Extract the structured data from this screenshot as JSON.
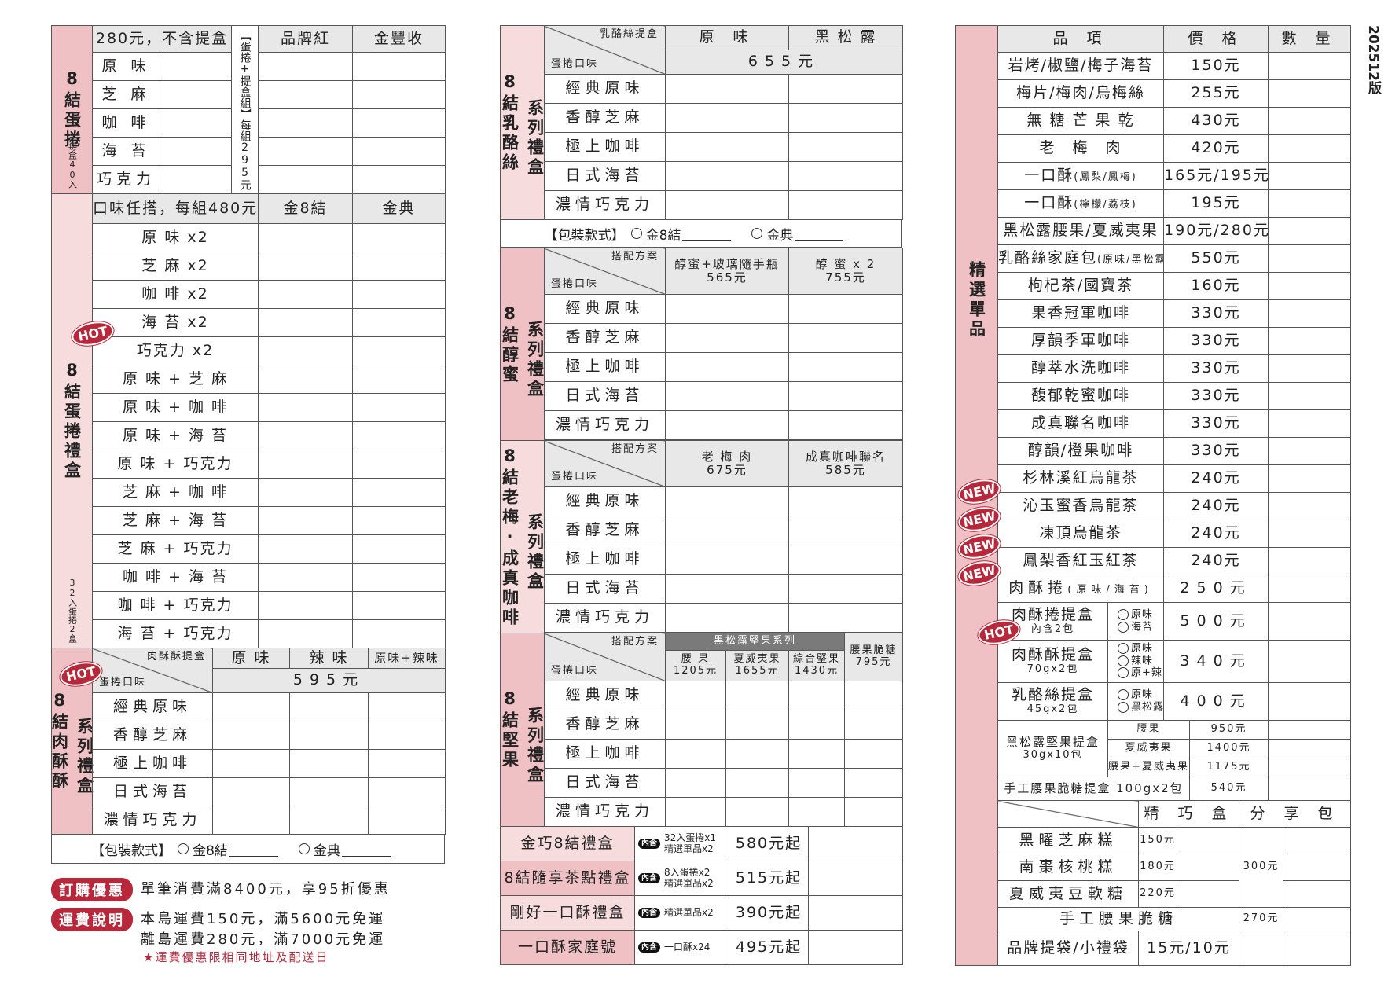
{
  "version": "202512版",
  "badges": {
    "hot": "HOT",
    "new": "NEW"
  },
  "colors": {
    "accent_red": "#b8283a",
    "label_pink": "#efc0c4",
    "label_light_pink": "#f7dcde",
    "header_gray": "#e8e8e8"
  },
  "eggroll": {
    "title": "8結蛋捲",
    "note": "每盒40入",
    "price_note": "280元，不含提盒",
    "set_label": "【蛋捲+提盒組】",
    "set_price": "每組295元",
    "box_cols": [
      "品牌紅",
      "金豐收"
    ],
    "flavors": [
      "原 味",
      "芝 麻",
      "咖 啡",
      "海 苔",
      "巧克力"
    ]
  },
  "eggroll_gift": {
    "title": "8結蛋捲禮盒",
    "note": "32入蛋捲2盒",
    "header": "口味任搭，每組480元",
    "cols": [
      "金8結",
      "金典"
    ],
    "combos": [
      "原 味 x2",
      "芝 麻 x2",
      "咖 啡 x2",
      "海 苔 x2",
      "巧克力 x2",
      "原 味 + 芝 麻",
      "原 味 + 咖 啡",
      "原 味 + 海 苔",
      "原 味 + 巧克力",
      "芝 麻 + 咖 啡",
      "芝 麻 + 海 苔",
      "芝 麻 + 巧克力",
      "咖 啡 + 海 苔",
      "咖 啡 + 巧克力",
      "海 苔 + 巧克力"
    ]
  },
  "flavors": [
    "經典原味",
    "香醇芝麻",
    "極上咖啡",
    "日式海苔",
    "濃情巧克力"
  ],
  "corner_bottom": "蛋捲口味",
  "corner_plan": "搭配方案",
  "package": {
    "label": "【包裝款式】",
    "opt1": "金8結",
    "opt2": "金典"
  },
  "pork_floss": {
    "title": "8結肉酥酥",
    "sub": "系列禮盒",
    "corner_top": "肉酥酥提盒",
    "cols": [
      "原 味",
      "辣 味",
      "原味+辣味"
    ],
    "price": "595元"
  },
  "cheese": {
    "title": "8結乳酪絲",
    "sub": "系列禮盒",
    "corner_top": "乳酪絲提盒",
    "cols": [
      "原 味",
      "黑 松 露"
    ],
    "price": "655元"
  },
  "honey": {
    "title": "8結醇蜜",
    "sub": "系列禮盒",
    "cols": [
      {
        "name": "醇蜜+玻璃隨手瓶",
        "price": "565元"
      },
      {
        "name": "醇 蜜 x 2",
        "price": "755元"
      }
    ]
  },
  "plum": {
    "title": "8結老梅‧成真咖啡",
    "sub": "系列禮盒",
    "cols": [
      {
        "name": "老 梅 肉",
        "price": "675元"
      },
      {
        "name": "成真咖啡聯名",
        "price": "585元"
      }
    ]
  },
  "nut": {
    "title": "8結堅果",
    "sub": "系列禮盒",
    "series": "黑松露堅果系列",
    "cols": [
      {
        "name": "腰 果",
        "price": "1205元"
      },
      {
        "name": "夏威夷果",
        "price": "1655元"
      },
      {
        "name": "綜合堅果",
        "price": "1430元"
      }
    ],
    "brittle": {
      "name": "腰果脆糖",
      "price": "795元"
    }
  },
  "gifts": [
    {
      "name": "金巧8結禮盒",
      "inc": "內含",
      "lines": [
        "32入蛋捲x1",
        "精選單品x2"
      ],
      "price": "580元起"
    },
    {
      "name": "8結隨享茶點禮盒",
      "inc": "內含",
      "lines": [
        "8入蛋捲x2",
        "精選單品x2"
      ],
      "price": "515元起"
    },
    {
      "name": "剛好一口酥禮盒",
      "inc": "內含",
      "lines": [
        "精選單品x2"
      ],
      "price": "390元起"
    },
    {
      "name": "一口酥家庭號",
      "inc": "內含",
      "lines": [
        "一口酥x24"
      ],
      "price": "495元起"
    }
  ],
  "promos": {
    "order_badge": "訂購優惠",
    "order_text": "單筆消費滿8400元，享95折優惠",
    "ship_badge": "運費說明",
    "ship_line1": "本島運費150元，滿5600元免運",
    "ship_line2": "離島運費280元，滿7000元免運",
    "ship_note": "★運費優惠限相同地址及配送日"
  },
  "singles": {
    "title": "精選單品",
    "headers": [
      "品 項",
      "價 格",
      "數 量"
    ],
    "items": [
      {
        "name": "岩烤/椒鹽/梅子海苔",
        "sub": "",
        "price": "150元"
      },
      {
        "name": "梅片/梅肉/烏梅絲",
        "sub": "",
        "price": "255元"
      },
      {
        "name": "無 糖 芒 果 乾",
        "sub": "",
        "price": "430元"
      },
      {
        "name": "老　梅　肉",
        "sub": "",
        "price": "420元"
      },
      {
        "name": "一口酥",
        "sub": "(鳳梨/鳳梅)",
        "price": "165元/195元"
      },
      {
        "name": "一口酥",
        "sub": "(檸檬/荔枝)",
        "price": "195元"
      },
      {
        "name": "黑松露腰果/夏威夷果",
        "sub": "",
        "price": "190元/280元"
      },
      {
        "name": "乳酪絲家庭包",
        "sub": "(原味/黑松露)",
        "price": "550元"
      },
      {
        "name": "枸杞茶/國寶茶",
        "sub": "",
        "price": "160元"
      },
      {
        "name": "果香冠軍咖啡",
        "sub": "",
        "price": "330元"
      },
      {
        "name": "厚韻季軍咖啡",
        "sub": "",
        "price": "330元"
      },
      {
        "name": "醇萃水洗咖啡",
        "sub": "",
        "price": "330元"
      },
      {
        "name": "馥郁乾蜜咖啡",
        "sub": "",
        "price": "330元"
      },
      {
        "name": "成真聯名咖啡",
        "sub": "",
        "price": "330元"
      },
      {
        "name": "醇韻/橙果咖啡",
        "sub": "",
        "price": "330元"
      },
      {
        "name": "杉林溪紅烏龍茶",
        "sub": "",
        "price": "240元",
        "new": true
      },
      {
        "name": "沁玉蜜香烏龍茶",
        "sub": "",
        "price": "240元",
        "new": true
      },
      {
        "name": "凍頂烏龍茶",
        "sub": "",
        "price": "240元",
        "new": true
      },
      {
        "name": "鳳梨香紅玉紅茶",
        "sub": "",
        "price": "240元",
        "new": true
      }
    ]
  },
  "boxes": {
    "roll": {
      "name": "肉酥捲",
      "sub": "(原味/海苔)",
      "price": "250元"
    },
    "roll_box": {
      "name": "肉酥捲提盒",
      "sub": "內含2包",
      "opts": [
        "原味",
        "海苔"
      ],
      "price": "500元"
    },
    "floss_box": {
      "name": "肉酥酥提盒",
      "sub": "70gx2包",
      "opts": [
        "原味",
        "辣味",
        "原+辣"
      ],
      "price": "340元"
    },
    "cheese_box": {
      "name": "乳酪絲提盒",
      "sub": "45gx2包",
      "opts": [
        "原味",
        "黑松露"
      ],
      "price": "400元"
    },
    "nut_box": {
      "name": "黑松露堅果提盒",
      "sub": "30gx10包",
      "opts": [
        {
          "name": "腰果",
          "price": "950元"
        },
        {
          "name": "夏威夷果",
          "price": "1400元"
        },
        {
          "name": "腰果+夏威夷果",
          "price": "1175元"
        }
      ]
    },
    "brittle_box": {
      "name": "手工腰果脆糖提盒 100gx2包",
      "price": "540元"
    }
  },
  "snacks": {
    "headers": [
      "精 巧 盒",
      "分 享 包"
    ],
    "items": [
      {
        "name": "黑曜芝麻糕",
        "price": "150元"
      },
      {
        "name": "南棗核桃糕",
        "price": "180元"
      },
      {
        "name": "夏威夷豆軟糖",
        "price": "220元"
      }
    ],
    "share_price": "300元",
    "brittle": {
      "name": "手工腰果脆糖",
      "price": "270元"
    },
    "bag": {
      "name": "品牌提袋/小禮袋",
      "price": "15元/10元"
    }
  }
}
